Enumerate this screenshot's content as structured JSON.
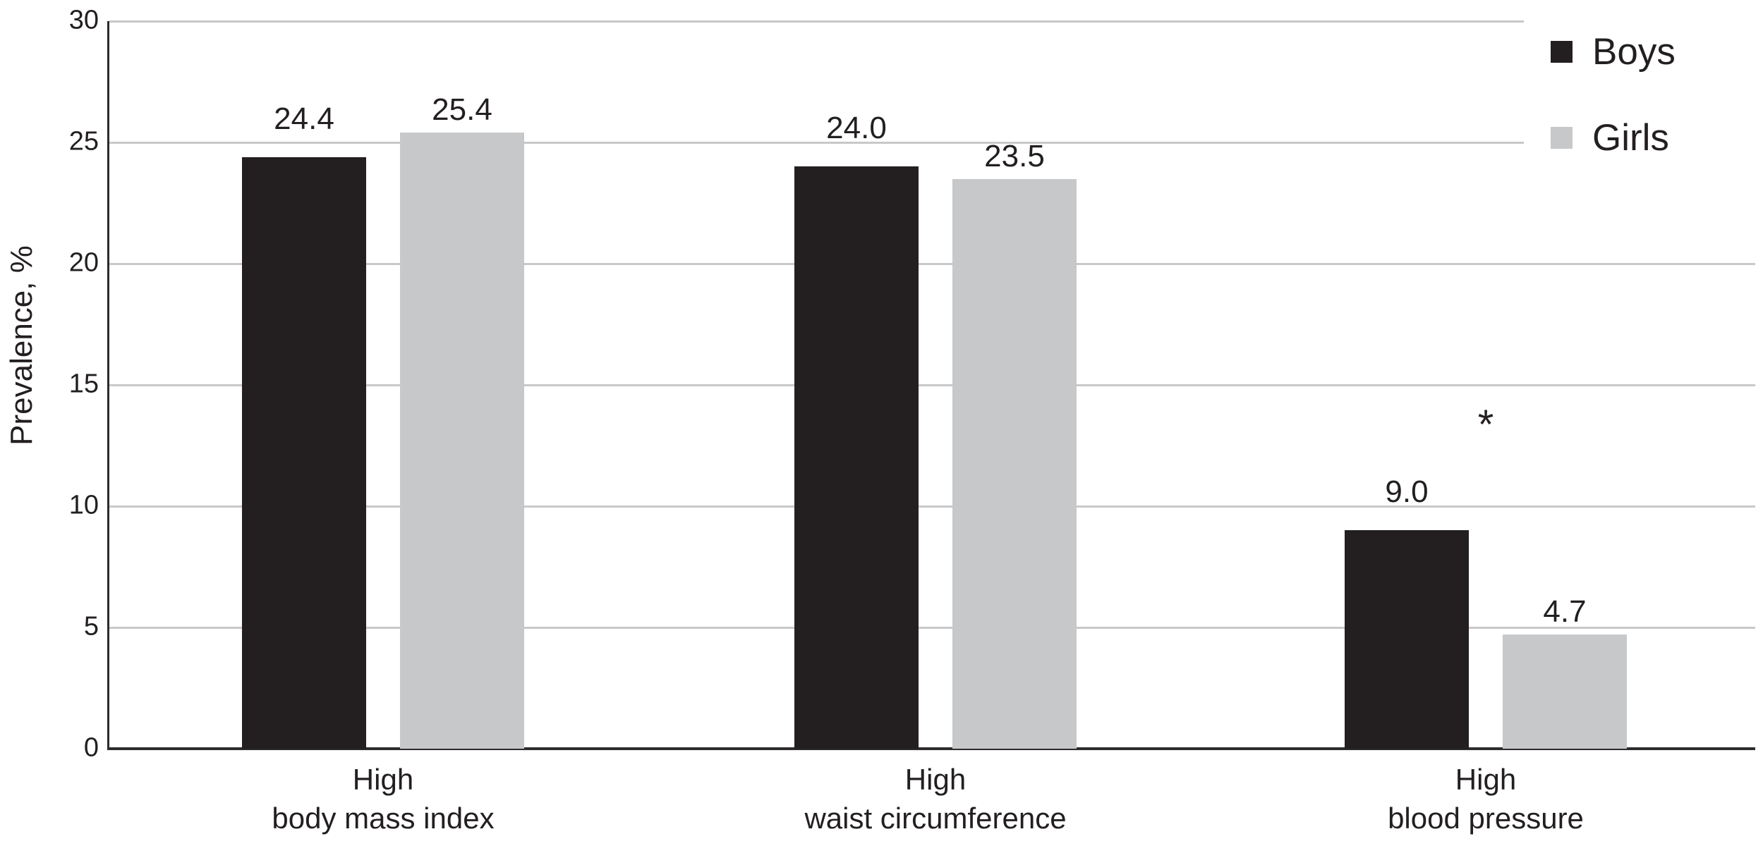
{
  "figure": {
    "background": "#ffffff"
  },
  "chart_data": {
    "type": "bar",
    "title": "",
    "xlabel": "",
    "ylabel": "Prevalence, %",
    "ylim": [
      0,
      30
    ],
    "yticks": [
      0,
      5,
      10,
      15,
      20,
      25,
      30
    ],
    "grid": "horizontal",
    "legend_position": "top-right",
    "categories": [
      "High\nbody mass index",
      "High\nwaist circumference",
      "High\nblood pressure"
    ],
    "series": [
      {
        "name": "Boys",
        "color": "#231f20",
        "values": [
          24.4,
          24.0,
          9.0
        ],
        "labels": [
          "24.4",
          "24.0",
          "9.0"
        ]
      },
      {
        "name": "Girls",
        "color": "#c7c8ca",
        "values": [
          25.4,
          23.5,
          4.7
        ],
        "labels": [
          "25.4",
          "23.5",
          "4.7"
        ]
      }
    ],
    "annotations": [
      {
        "text": "*",
        "category_index": 2
      }
    ],
    "colors": {
      "grid": "#c8c8c8",
      "axis": "#2d2b2c",
      "text": "#231f20"
    }
  }
}
